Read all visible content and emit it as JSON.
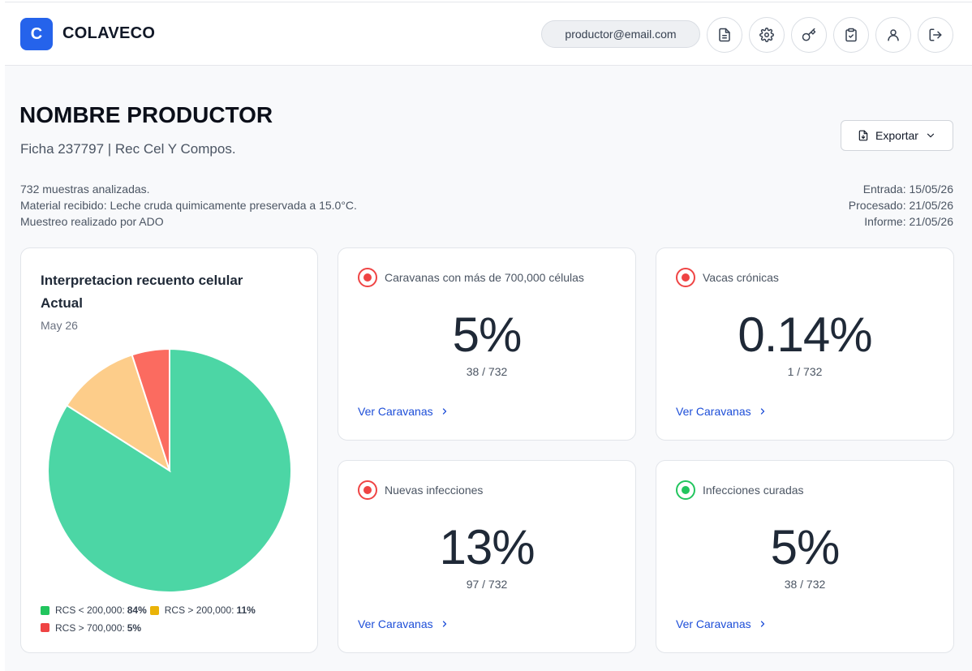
{
  "header": {
    "logo_letter": "C",
    "brand": "COLAVECO",
    "email": "productor@email.com",
    "icons": [
      "document-icon",
      "gear-icon",
      "key-icon",
      "clipboard-check-icon",
      "user-icon",
      "logout-icon"
    ]
  },
  "page": {
    "title": "NOMBRE PRODUCTOR",
    "subtitle": "Ficha 237797 | Rec Cel Y Compos.",
    "export_label": "Exportar",
    "info_left": [
      "732 muestras analizadas.",
      "Material recibido: Leche cruda quimicamente preservada a 15.0°C.",
      "Muestreo realizado por ADO"
    ],
    "info_right": [
      "Entrada: 15/05/26",
      "Procesado: 21/05/26",
      "Informe: 21/05/26"
    ]
  },
  "pie_card": {
    "title_line1": "Interpretacion recuento celular",
    "title_line2": "Actual",
    "date": "May 26"
  },
  "chart_data": {
    "type": "pie",
    "slices": [
      {
        "label": "RCS < 200,000:",
        "value": 84,
        "display": "84%",
        "color": "#4cd6a5",
        "legend_color": "#22c55e"
      },
      {
        "label": "RCS > 200,000:",
        "value": 11,
        "display": "11%",
        "color": "#fdcd8a",
        "legend_color": "#eab308"
      },
      {
        "label": "RCS > 700,000:",
        "value": 5,
        "display": "5%",
        "color": "#fb6b60",
        "legend_color": "#ef4444"
      }
    ],
    "legend_placement": "bottom"
  },
  "stats": [
    {
      "label": "Caravanas con más de 700,000 células",
      "value": "5%",
      "ratio": "38 / 732",
      "link": "Ver Caravanas",
      "status_color": "#ef4444"
    },
    {
      "label": "Vacas crónicas",
      "value": "0.14%",
      "ratio": "1 / 732",
      "link": "Ver Caravanas",
      "status_color": "#ef4444"
    },
    {
      "label": "Nuevas infecciones",
      "value": "13%",
      "ratio": "97 / 732",
      "link": "Ver Caravanas",
      "status_color": "#ef4444"
    },
    {
      "label": "Infecciones curadas",
      "value": "5%",
      "ratio": "38 / 732",
      "link": "Ver Caravanas",
      "status_color": "#22c55e"
    }
  ]
}
